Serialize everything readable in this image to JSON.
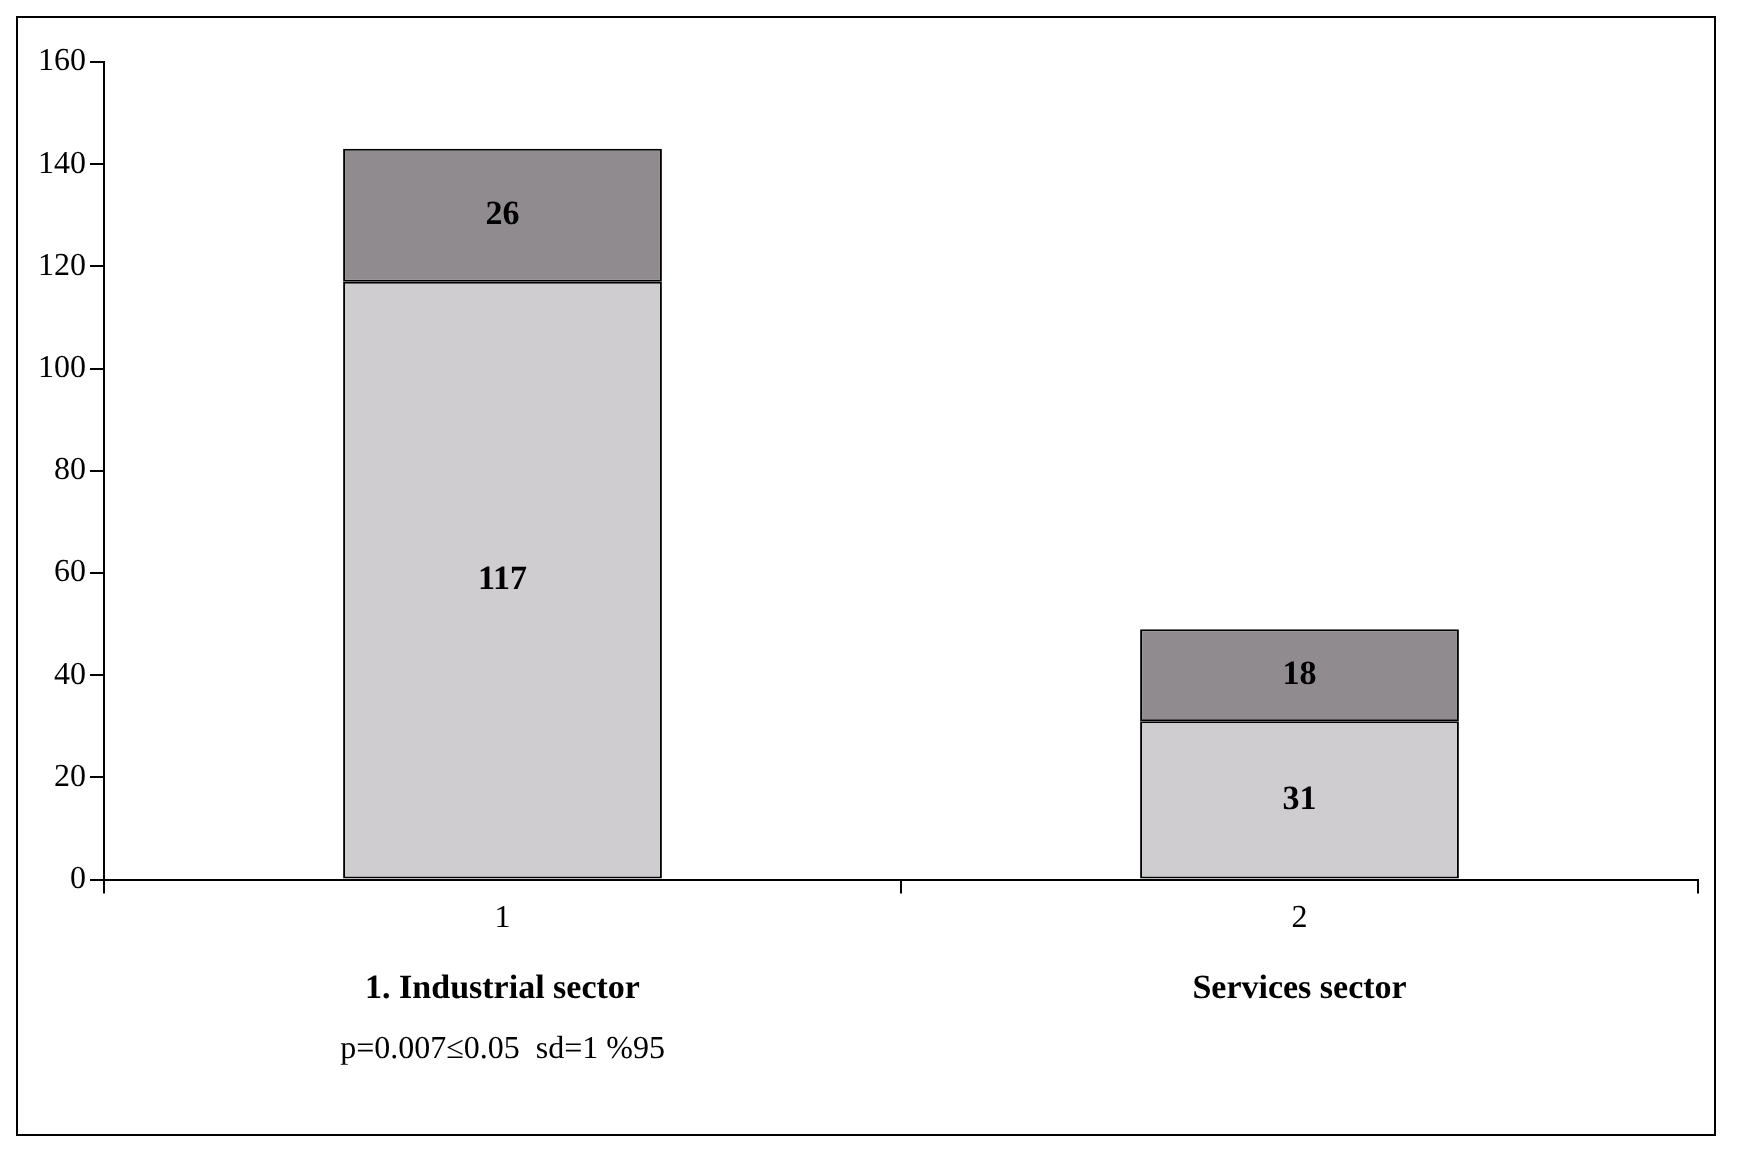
{
  "chart_data": {
    "type": "bar",
    "stacked": true,
    "categories": [
      "1",
      "2"
    ],
    "series": [
      {
        "color": "#d0cdd0",
        "values": [
          117,
          31
        ]
      },
      {
        "color": "#8f8b8e",
        "values": [
          26,
          18
        ]
      }
    ],
    "ylim": [
      0,
      160
    ],
    "yticks": [
      0,
      20,
      40,
      60,
      80,
      100,
      120,
      140,
      160
    ],
    "grid": false,
    "legend": false,
    "data_labels": true,
    "annotations": [
      "1. Industrial sector",
      "Services sector",
      "p=0.007≤0.05  sd=1 %95"
    ]
  }
}
